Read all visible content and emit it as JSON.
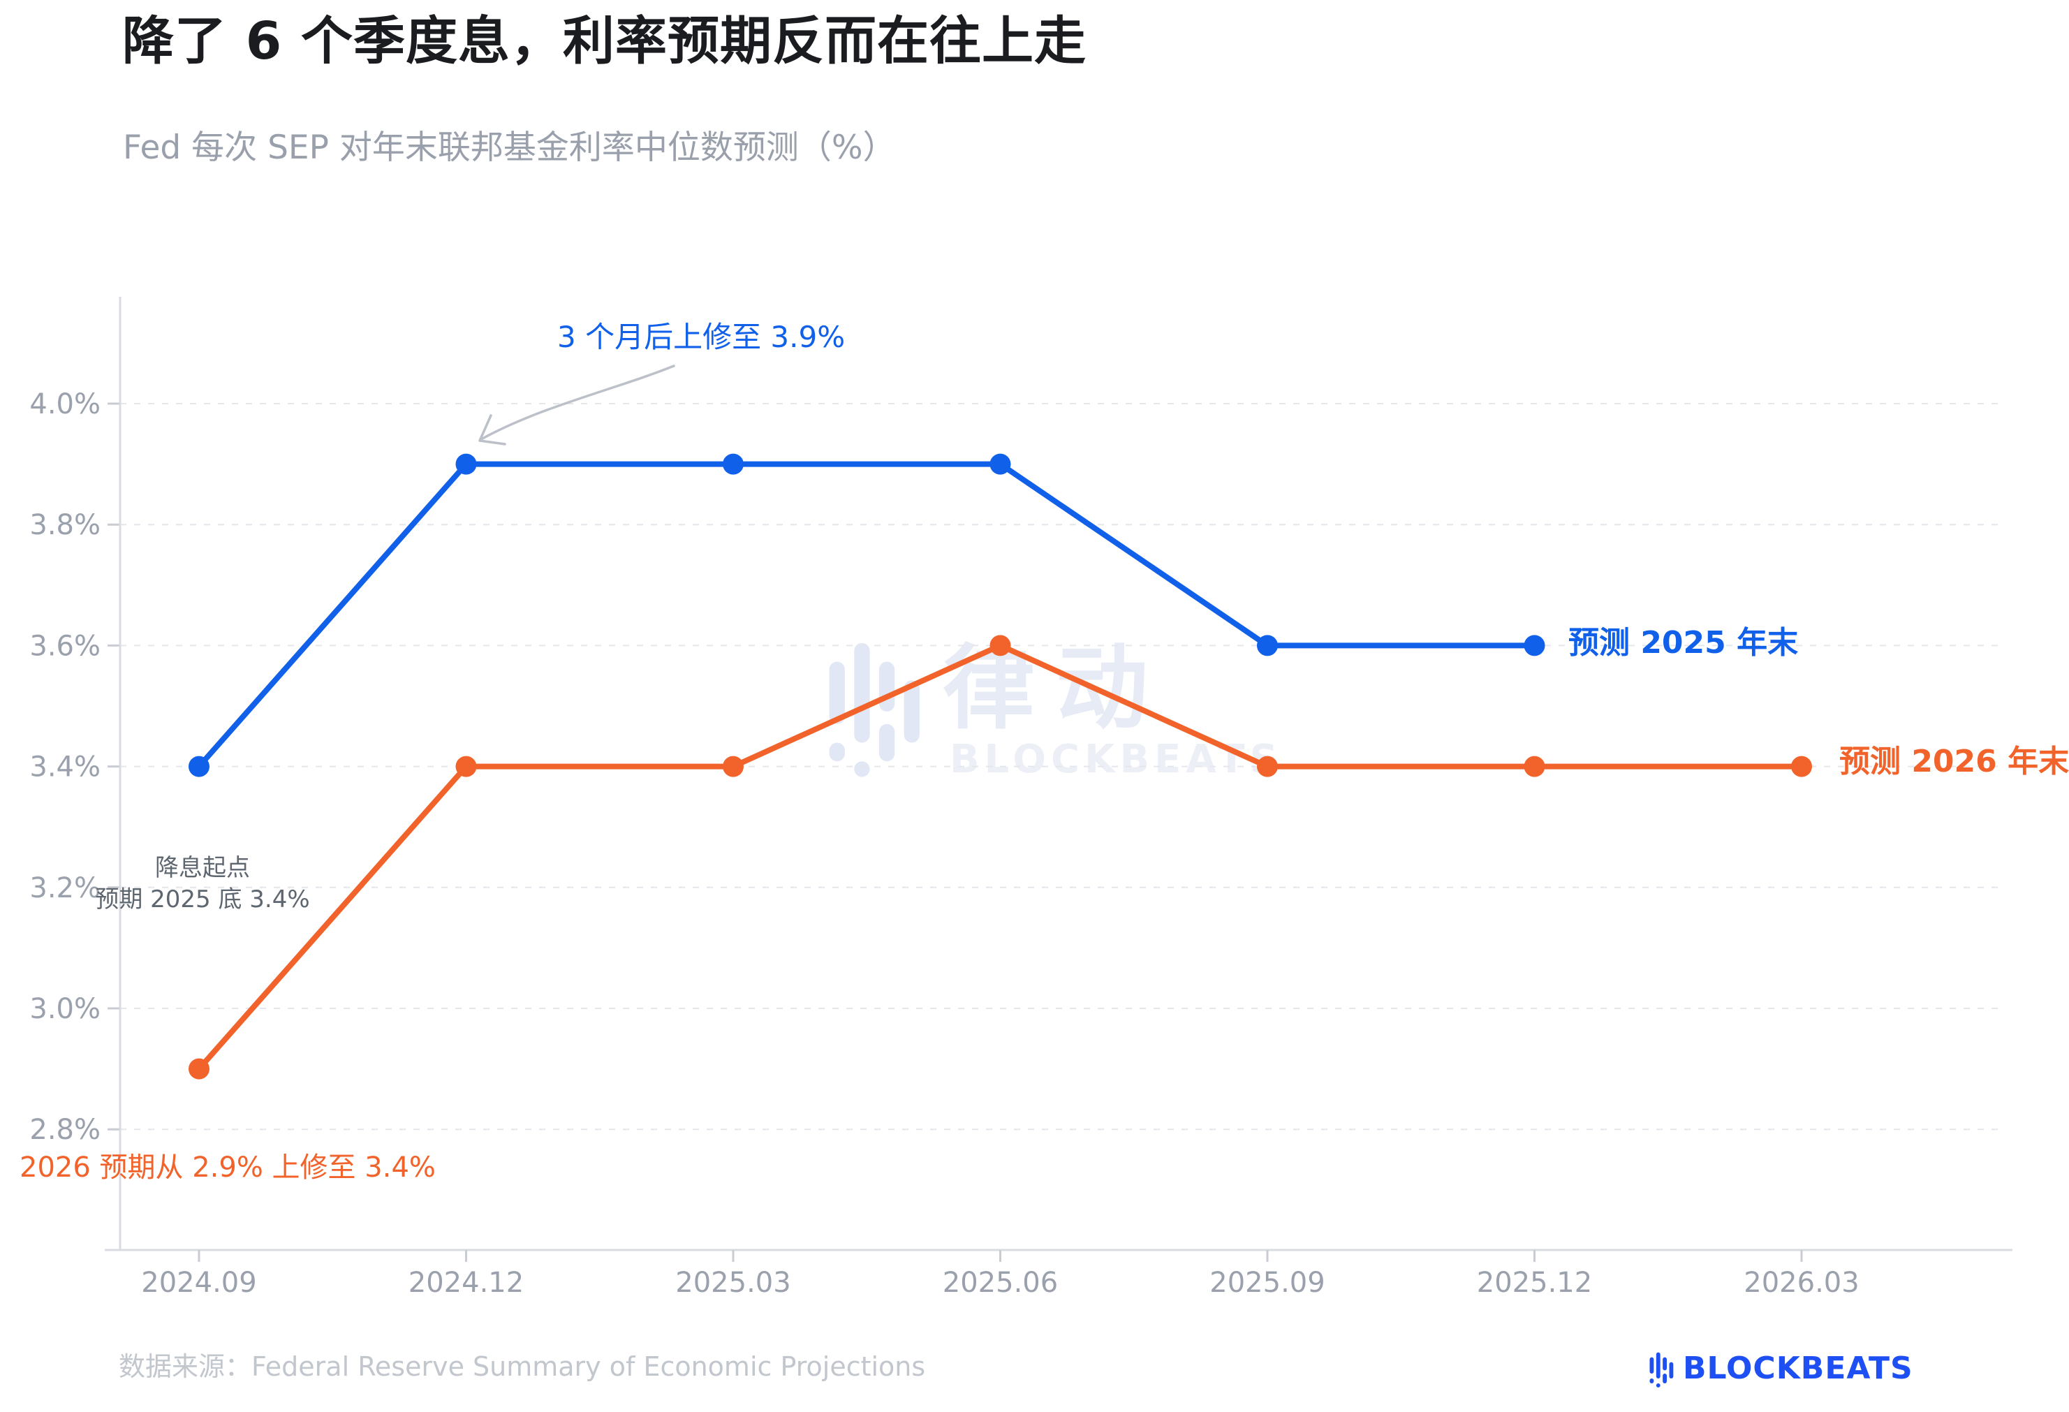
{
  "header": {
    "title": "降了 6 个季度息，利率预期反而在往上走",
    "subtitle": "Fed 每次 SEP 对年末联邦基金利率中位数预测（%）"
  },
  "chart_data": {
    "type": "line",
    "categories": [
      "2024.09",
      "2024.12",
      "2025.03",
      "2025.06",
      "2025.09",
      "2025.12",
      "2026.03"
    ],
    "series": [
      {
        "name": "预测 2025 年末",
        "color": "#1060ea",
        "values": [
          3.4,
          3.9,
          3.9,
          3.9,
          3.6,
          3.6
        ]
      },
      {
        "name": "预测 2026 年末",
        "color": "#f1632a",
        "values": [
          2.9,
          3.4,
          3.4,
          3.6,
          3.4,
          3.4,
          3.4
        ]
      }
    ],
    "y_ticks": [
      {
        "label": "4.0%",
        "value": 4.0
      },
      {
        "label": "3.8%",
        "value": 3.8
      },
      {
        "label": "3.6%",
        "value": 3.6
      },
      {
        "label": "3.4%",
        "value": 3.4
      },
      {
        "label": "3.2%",
        "value": 3.2
      },
      {
        "label": "3.0%",
        "value": 3.0
      },
      {
        "label": "2.8%",
        "value": 2.8
      }
    ],
    "ylim": [
      2.6,
      4.18
    ],
    "ylabel": "",
    "xlabel": "",
    "grid": "horizontal-dashed",
    "legend_position": "line-end-labels"
  },
  "annotations": {
    "revision_2025": "3 个月后上修至 3.9%",
    "start_point_line1": "降息起点",
    "start_point_line2": "预期 2025 底 3.4%",
    "revision_2026": "2026 预期从 2.9% 上修至 3.4%"
  },
  "watermark": {
    "cn": "律动",
    "en": "BLOCKBEATS"
  },
  "footer": {
    "source": "数据来源：Federal Reserve Summary of Economic Projections",
    "logo_text": "BLOCKBEATS"
  },
  "colors": {
    "blue": "#1060ea",
    "orange": "#f1632a",
    "axis": "#d9dbe0",
    "grid": "#e4e6eb",
    "tick_label": "#9aa1ac",
    "logo_blue": "#1d4ff3"
  }
}
